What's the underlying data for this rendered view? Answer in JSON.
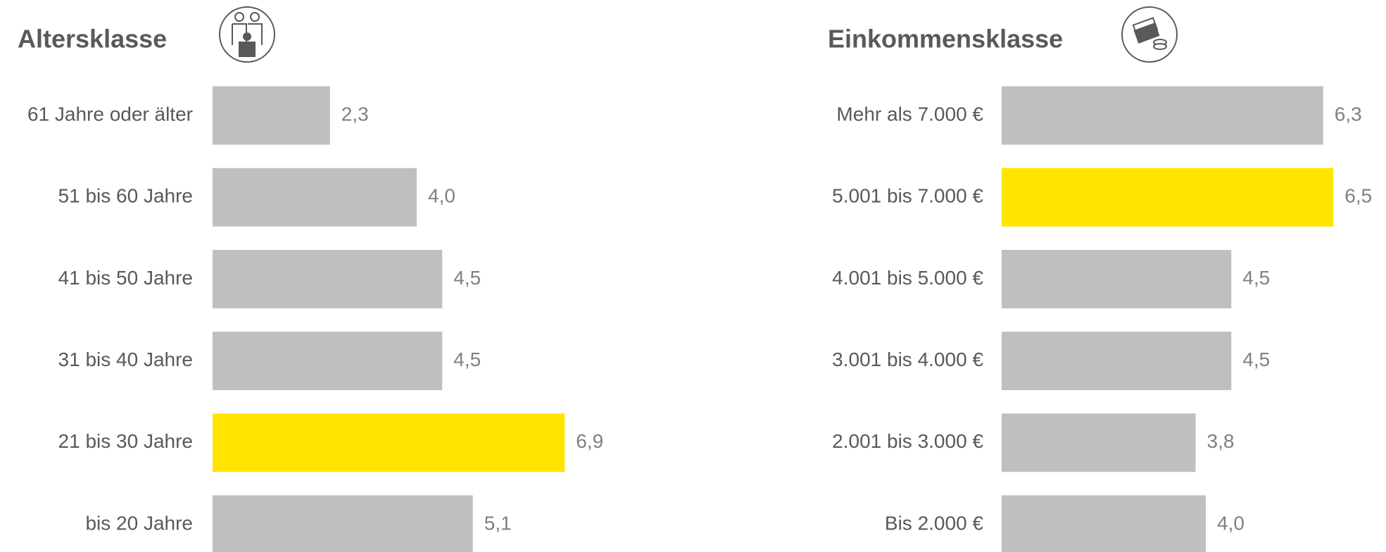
{
  "chart_data": [
    {
      "type": "hbar",
      "title": "Altersklasse",
      "categories": [
        "61 Jahre oder älter",
        "51 bis 60 Jahre",
        "41 bis 50 Jahre",
        "31 bis 40 Jahre",
        "21 bis 30 Jahre",
        "bis 20 Jahre"
      ],
      "values": [
        2.3,
        4.0,
        4.5,
        4.5,
        6.9,
        5.1
      ],
      "value_labels": [
        "2,3",
        "4,0",
        "4,5",
        "4,5",
        "6,9",
        "5,1"
      ],
      "colors": [
        "#bfbfbf",
        "#bfbfbf",
        "#bfbfbf",
        "#bfbfbf",
        "#ffe500",
        "#bfbfbf"
      ]
    },
    {
      "type": "hbar",
      "title": "Einkommensklasse",
      "categories": [
        "Mehr als 7.000 €",
        "5.001 bis 7.000 €",
        "4.001 bis 5.000 €",
        "3.001 bis 4.000 €",
        "2.001 bis 3.000 €",
        "Bis 2.000 €"
      ],
      "values": [
        6.3,
        6.5,
        4.5,
        4.5,
        3.8,
        4.0
      ],
      "value_labels": [
        "6,3",
        "6,5",
        "4,5",
        "4,5",
        "3,8",
        "4,0"
      ],
      "colors": [
        "#bfbfbf",
        "#ffe500",
        "#bfbfbf",
        "#bfbfbf",
        "#bfbfbf",
        "#bfbfbf"
      ]
    }
  ]
}
